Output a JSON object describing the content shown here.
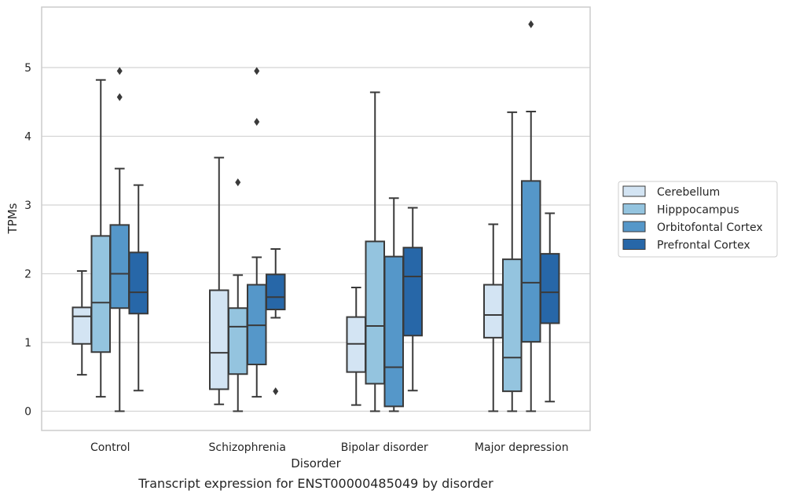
{
  "caption": "Transcript expression for ENST00000485049 by disorder",
  "chart_data": {
    "type": "box",
    "xlabel": "Disorder",
    "ylabel": "TPMs",
    "ylim": [
      -0.28,
      5.88
    ],
    "yticks": [
      0,
      1,
      2,
      3,
      4,
      5
    ],
    "grid": "horizontal",
    "legend_placement": "right",
    "categories": [
      "Control",
      "Schizophrenia",
      "Bipolar disorder",
      "Major depression"
    ],
    "series": [
      {
        "name": "Cerebellum",
        "color": "#d3e4f3",
        "boxes": [
          {
            "whisker_low": 0.53,
            "q1": 0.98,
            "median": 1.38,
            "q3": 1.51,
            "whisker_high": 2.04,
            "outliers": []
          },
          {
            "whisker_low": 0.1,
            "q1": 0.32,
            "median": 0.85,
            "q3": 1.76,
            "whisker_high": 3.69,
            "outliers": []
          },
          {
            "whisker_low": 0.09,
            "q1": 0.57,
            "median": 0.98,
            "q3": 1.37,
            "whisker_high": 1.8,
            "outliers": []
          },
          {
            "whisker_low": 0.0,
            "q1": 1.07,
            "median": 1.4,
            "q3": 1.84,
            "whisker_high": 2.72,
            "outliers": []
          }
        ]
      },
      {
        "name": "Hipppocampus",
        "color": "#94c4df",
        "boxes": [
          {
            "whisker_low": 0.21,
            "q1": 0.86,
            "median": 1.58,
            "q3": 2.55,
            "whisker_high": 4.82,
            "outliers": []
          },
          {
            "whisker_low": 0.0,
            "q1": 0.54,
            "median": 1.23,
            "q3": 1.5,
            "whisker_high": 1.98,
            "outliers": [
              3.33
            ]
          },
          {
            "whisker_low": 0.0,
            "q1": 0.4,
            "median": 1.24,
            "q3": 2.47,
            "whisker_high": 4.64,
            "outliers": []
          },
          {
            "whisker_low": 0.0,
            "q1": 0.29,
            "median": 0.78,
            "q3": 2.21,
            "whisker_high": 4.35,
            "outliers": []
          }
        ]
      },
      {
        "name": "Orbitofontal Cortex",
        "color": "#5597c9",
        "boxes": [
          {
            "whisker_low": 0.0,
            "q1": 1.5,
            "median": 2.0,
            "q3": 2.71,
            "whisker_high": 3.53,
            "outliers": [
              4.57,
              4.95
            ]
          },
          {
            "whisker_low": 0.21,
            "q1": 0.68,
            "median": 1.25,
            "q3": 1.84,
            "whisker_high": 2.24,
            "outliers": [
              4.21,
              4.95
            ]
          },
          {
            "whisker_low": 0.0,
            "q1": 0.07,
            "median": 0.64,
            "q3": 2.25,
            "whisker_high": 3.1,
            "outliers": []
          },
          {
            "whisker_low": 0.0,
            "q1": 1.01,
            "median": 1.87,
            "q3": 3.35,
            "whisker_high": 4.36,
            "outliers": [
              5.63
            ]
          }
        ]
      },
      {
        "name": "Prefrontal Cortex",
        "color": "#2767a8",
        "boxes": [
          {
            "whisker_low": 0.3,
            "q1": 1.42,
            "median": 1.73,
            "q3": 2.31,
            "whisker_high": 3.29,
            "outliers": []
          },
          {
            "whisker_low": 1.36,
            "q1": 1.48,
            "median": 1.66,
            "q3": 1.99,
            "whisker_high": 2.36,
            "outliers": [
              0.29
            ]
          },
          {
            "whisker_low": 0.3,
            "q1": 1.1,
            "median": 1.96,
            "q3": 2.38,
            "whisker_high": 2.96,
            "outliers": []
          },
          {
            "whisker_low": 0.14,
            "q1": 1.28,
            "median": 1.73,
            "q3": 2.29,
            "whisker_high": 2.88,
            "outliers": []
          }
        ]
      }
    ]
  }
}
